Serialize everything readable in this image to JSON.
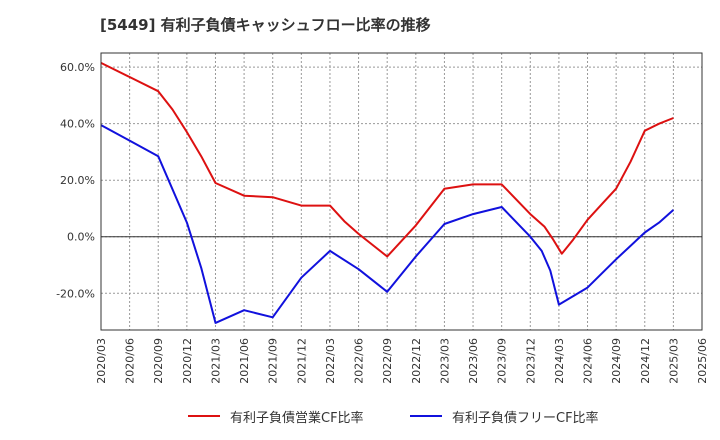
{
  "chart_data": {
    "type": "line",
    "title": "[5449]  有利子負債キャッシュフロー比率の推移",
    "x": [
      "2020/03",
      "2020/06",
      "2020/09",
      "2020/12",
      "2021/03",
      "2021/06",
      "2021/09",
      "2021/12",
      "2022/03",
      "2022/06",
      "2022/09",
      "2022/12",
      "2023/03",
      "2023/06",
      "2023/09",
      "2023/12",
      "2024/03",
      "2024/06",
      "2024/09",
      "2024/12",
      "2025/03",
      "2025/06"
    ],
    "yticks": [
      "60.0%",
      "40.0%",
      "20.0%",
      "0.0%",
      "-20.0%"
    ],
    "ytick_values": [
      60,
      40,
      20,
      0,
      -20
    ],
    "ylim": [
      -33,
      65
    ],
    "grid": true,
    "legend_position": "bottom",
    "series": [
      {
        "name": "有利子負債営業CF比率",
        "color": "#dd1111",
        "points": [
          [
            0,
            61.5
          ],
          [
            1,
            56.5
          ],
          [
            2,
            51.5
          ],
          [
            2.5,
            45
          ],
          [
            3,
            37
          ],
          [
            3.5,
            28.5
          ],
          [
            4,
            19
          ],
          [
            5,
            14.5
          ],
          [
            6,
            14
          ],
          [
            7,
            11
          ],
          [
            8,
            11
          ],
          [
            8.5,
            5.5
          ],
          [
            9,
            1
          ],
          [
            10,
            -7
          ],
          [
            11,
            4
          ],
          [
            12,
            17
          ],
          [
            13,
            18.5
          ],
          [
            14,
            18.5
          ],
          [
            15,
            8
          ],
          [
            15.5,
            3.5
          ],
          [
            15.8,
            -1
          ],
          [
            16.1,
            -6
          ],
          [
            16.5,
            -1
          ],
          [
            17,
            6
          ],
          [
            17.5,
            11.5
          ],
          [
            18,
            17
          ],
          [
            18.5,
            26.5
          ],
          [
            19,
            37.5
          ],
          [
            19.5,
            40
          ],
          [
            20,
            42
          ]
        ]
      },
      {
        "name": "有利子負債フリーCF比率",
        "color": "#1111dd",
        "points": [
          [
            0,
            39.5
          ],
          [
            1,
            34
          ],
          [
            2,
            28.5
          ],
          [
            3,
            5
          ],
          [
            3.5,
            -11
          ],
          [
            4,
            -30.5
          ],
          [
            5,
            -26
          ],
          [
            6,
            -28.5
          ],
          [
            7,
            -14.5
          ],
          [
            8,
            -5
          ],
          [
            9,
            -11.5
          ],
          [
            10,
            -19.5
          ],
          [
            11,
            -7
          ],
          [
            12,
            4.5
          ],
          [
            13,
            8
          ],
          [
            14,
            10.5
          ],
          [
            15,
            0
          ],
          [
            15.4,
            -5
          ],
          [
            15.7,
            -12
          ],
          [
            16,
            -24
          ],
          [
            17,
            -18
          ],
          [
            18,
            -8
          ],
          [
            19,
            1.5
          ],
          [
            19.5,
            5
          ],
          [
            20,
            9.5
          ]
        ]
      }
    ]
  }
}
